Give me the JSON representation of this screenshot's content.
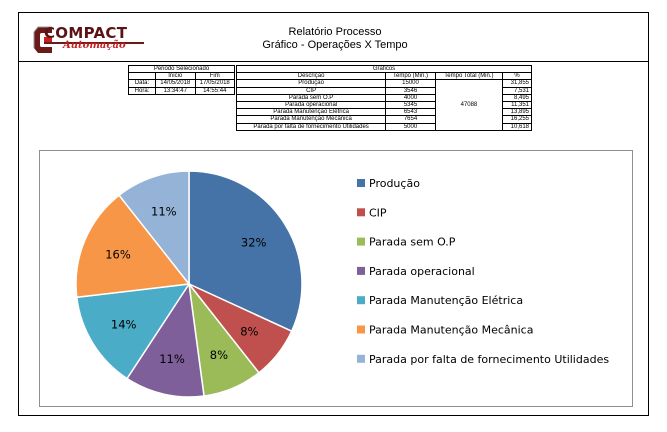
{
  "header": {
    "logo_main": "COMPACT",
    "logo_sub": "Automação",
    "title": "Relatório Processo",
    "subtitle": "Gráfico - Operações X Tempo"
  },
  "period": {
    "title": "Periodo Selecionado",
    "col_inicio": "Inicio",
    "col_fim": "Fim",
    "rows": [
      {
        "label": "Data:",
        "inicio": "14/05/2018",
        "fim": "17/05/2018"
      },
      {
        "label": "Hora:",
        "inicio": "13:34:47",
        "fim": "14:55:44"
      }
    ]
  },
  "graficos": {
    "title": "Graficos",
    "headers": [
      "Descrição",
      "Tempo (Min.)",
      "Tempo Total (Min.)",
      "%"
    ],
    "total": "47088",
    "rows": [
      {
        "desc": "Produção",
        "tempo": "15000",
        "pct": "31,855"
      },
      {
        "desc": "CIP",
        "tempo": "3546",
        "pct": "7,531"
      },
      {
        "desc": "Parada sem O.P",
        "tempo": "4000",
        "pct": "8,495"
      },
      {
        "desc": "Parada operacional",
        "tempo": "5345",
        "pct": "11,351"
      },
      {
        "desc": "Parada Manutenção Elétrica",
        "tempo": "6543",
        "pct": "13,895"
      },
      {
        "desc": "Parada Manutenção Mecânica",
        "tempo": "7654",
        "pct": "16,255"
      },
      {
        "desc": "Parada por falta de fornecimento Utilidades",
        "tempo": "5000",
        "pct": "10,618"
      }
    ]
  },
  "chart_data": {
    "type": "pie",
    "legend_position": "right",
    "categories": [
      "Produção",
      "CIP",
      "Parada sem O.P",
      "Parada operacional",
      "Parada Manutenção Elétrica",
      "Parada Manutenção Mecânica",
      "Parada por falta de fornecimento Utilidades"
    ],
    "values": [
      15000,
      3546,
      4000,
      5345,
      6543,
      7654,
      5000
    ],
    "labels": [
      "32%",
      "8%",
      "8%",
      "11%",
      "14%",
      "16%",
      "11%"
    ],
    "colors": [
      "#4572a7",
      "#c0504d",
      "#9bbb59",
      "#7e5f9a",
      "#4aacc6",
      "#f79646",
      "#95b3d7"
    ]
  }
}
